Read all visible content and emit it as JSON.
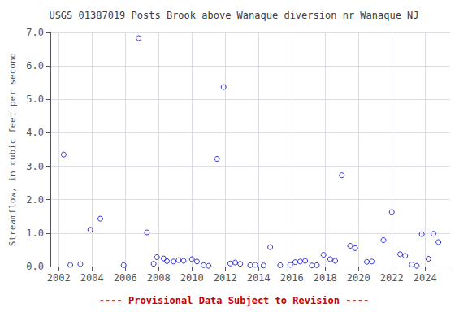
{
  "chart_data": {
    "type": "scatter",
    "title": "USGS 01387019 Posts Brook above Wanaque diversion nr Wanaque NJ",
    "ylabel": "Streamflow, in cubic feet per second",
    "annotations": [
      {
        "text": "---- Provisional Data Subject to Revision ----",
        "color": "#cc0000"
      }
    ],
    "x": [
      2002.3,
      2002.7,
      2003.3,
      2003.9,
      2004.5,
      2005.9,
      2006.8,
      2007.3,
      2007.7,
      2007.9,
      2008.3,
      2008.5,
      2008.9,
      2009.2,
      2009.5,
      2010.0,
      2010.3,
      2010.7,
      2011.0,
      2011.5,
      2011.9,
      2012.3,
      2012.6,
      2012.9,
      2013.5,
      2013.8,
      2014.3,
      2014.7,
      2015.3,
      2015.9,
      2016.2,
      2016.5,
      2016.8,
      2017.2,
      2017.5,
      2017.9,
      2018.3,
      2018.6,
      2019.0,
      2019.5,
      2019.8,
      2020.5,
      2020.8,
      2021.5,
      2022.0,
      2022.5,
      2022.8,
      2023.2,
      2023.5,
      2023.8,
      2024.2,
      2024.5,
      2024.8
    ],
    "values": [
      3.35,
      0.05,
      0.07,
      1.1,
      1.43,
      0.04,
      6.83,
      1.02,
      0.08,
      0.28,
      0.24,
      0.16,
      0.15,
      0.19,
      0.17,
      0.22,
      0.15,
      0.04,
      0.02,
      3.22,
      5.37,
      0.09,
      0.12,
      0.08,
      0.04,
      0.05,
      0.03,
      0.58,
      0.04,
      0.05,
      0.13,
      0.15,
      0.17,
      0.03,
      0.04,
      0.35,
      0.22,
      0.17,
      2.73,
      0.62,
      0.55,
      0.14,
      0.15,
      0.79,
      1.63,
      0.37,
      0.32,
      0.06,
      0.02,
      0.97,
      0.23,
      0.98,
      0.73
    ],
    "color": "#0000CC",
    "marker": "circle",
    "xlim": [
      2001.5,
      2025.5
    ],
    "xticks": [
      2002,
      2004,
      2006,
      2008,
      2010,
      2012,
      2014,
      2016,
      2018,
      2020,
      2022,
      2024
    ],
    "ylim": [
      0.0,
      7.0
    ],
    "yticks": [
      {
        "value": 0,
        "label": "0.0"
      },
      {
        "value": 1,
        "label": "1.0"
      },
      {
        "value": 2,
        "label": "2.0"
      },
      {
        "value": 3,
        "label": "3.0"
      },
      {
        "value": 4,
        "label": "4.0"
      },
      {
        "value": 5,
        "label": "5.0"
      },
      {
        "value": 6,
        "label": "6.0"
      },
      {
        "value": 7,
        "label": "7.0"
      }
    ],
    "grid": true
  }
}
